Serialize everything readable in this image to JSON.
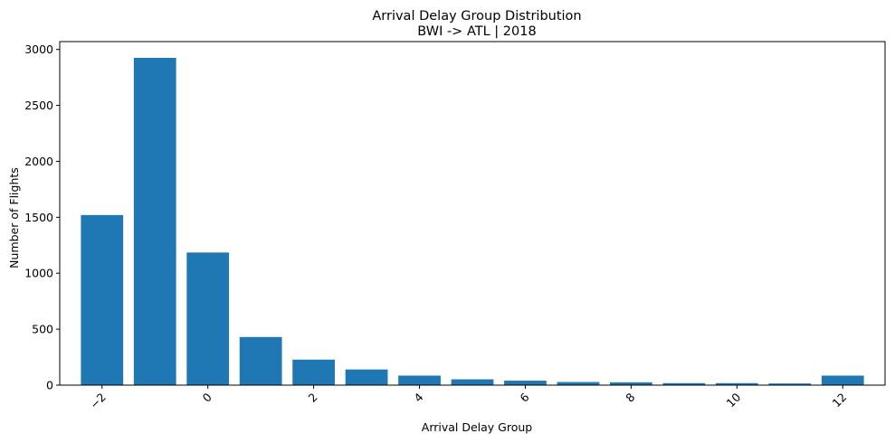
{
  "chart_data": {
    "type": "bar",
    "title": "Arrival Delay Group Distribution",
    "subtitle": "BWI -> ATL | 2018",
    "xlabel": "Arrival Delay Group",
    "ylabel": "Number of Flights",
    "categories": [
      -2,
      -1,
      0,
      1,
      2,
      3,
      4,
      5,
      6,
      7,
      8,
      9,
      10,
      11,
      12
    ],
    "values": [
      1520,
      2925,
      1185,
      430,
      228,
      140,
      85,
      52,
      40,
      28,
      25,
      18,
      18,
      15,
      85
    ],
    "xlim": [
      -2.8,
      12.8
    ],
    "ylim": [
      0,
      3070
    ],
    "xticks": [
      -2,
      0,
      2,
      4,
      6,
      8,
      10,
      12
    ],
    "xtick_labels": [
      "−2",
      "0",
      "2",
      "4",
      "6",
      "8",
      "10",
      "12"
    ],
    "yticks": [
      0,
      500,
      1000,
      1500,
      2000,
      2500,
      3000
    ],
    "ytick_labels": [
      "0",
      "500",
      "1000",
      "1500",
      "2000",
      "2500",
      "3000"
    ],
    "bar_color": "#1f77b4",
    "xtick_rotation_deg": 45,
    "grid": false
  }
}
